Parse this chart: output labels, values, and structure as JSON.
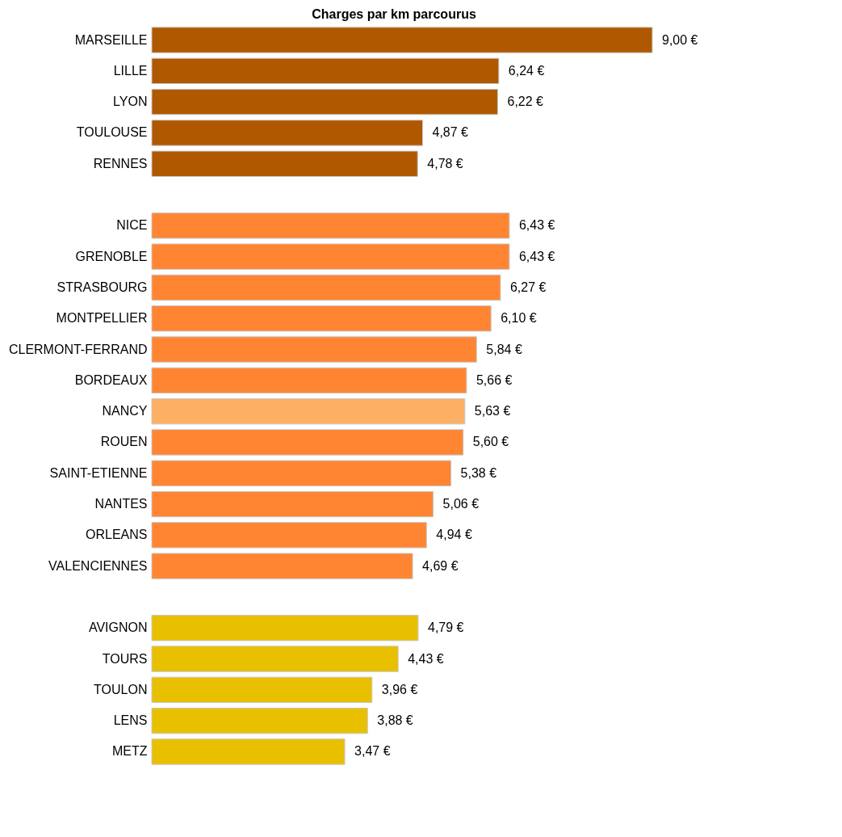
{
  "chart_data": {
    "type": "bar",
    "orientation": "horizontal",
    "title": "Charges par km parcourus",
    "categories": [
      "MARSEILLE",
      "LILLE",
      "LYON",
      "TOULOUSE",
      "RENNES",
      null,
      "NICE",
      "GRENOBLE",
      "STRASBOURG",
      "MONTPELLIER",
      "CLERMONT-FERRAND",
      "BORDEAUX",
      "NANCY",
      "ROUEN",
      "SAINT-ETIENNE",
      "NANTES",
      "ORLEANS",
      "VALENCIENNES",
      null,
      "AVIGNON",
      "TOURS",
      "TOULON",
      "LENS",
      "METZ"
    ],
    "values": [
      9.0,
      6.24,
      6.22,
      4.87,
      4.78,
      null,
      6.43,
      6.43,
      6.27,
      6.1,
      5.84,
      5.66,
      5.63,
      5.6,
      5.38,
      5.06,
      4.94,
      4.69,
      null,
      4.79,
      4.43,
      3.96,
      3.88,
      3.47
    ],
    "value_labels": [
      "9,00 €",
      "6,24 €",
      "6,22 €",
      "4,87 €",
      "4,78 €",
      null,
      "6,43 €",
      "6,43 €",
      "6,27 €",
      "6,10 €",
      "5,84 €",
      "5,66 €",
      "5,63 €",
      "5,60 €",
      "5,38 €",
      "5,06 €",
      "4,94 €",
      "4,69 €",
      null,
      "4,79 €",
      "4,43 €",
      "3,96 €",
      "3,88 €",
      "3,47 €"
    ],
    "colors": [
      "#b05800",
      "#b05800",
      "#b05800",
      "#b05800",
      "#b05800",
      null,
      "#ff8533",
      "#ff8533",
      "#ff8533",
      "#ff8533",
      "#ff8533",
      "#ff8533",
      "#fdb064",
      "#ff8533",
      "#ff8533",
      "#ff8533",
      "#ff8533",
      "#ff8533",
      null,
      "#e8c000",
      "#e8c000",
      "#e8c000",
      "#e8c000",
      "#e8c000"
    ]
  }
}
